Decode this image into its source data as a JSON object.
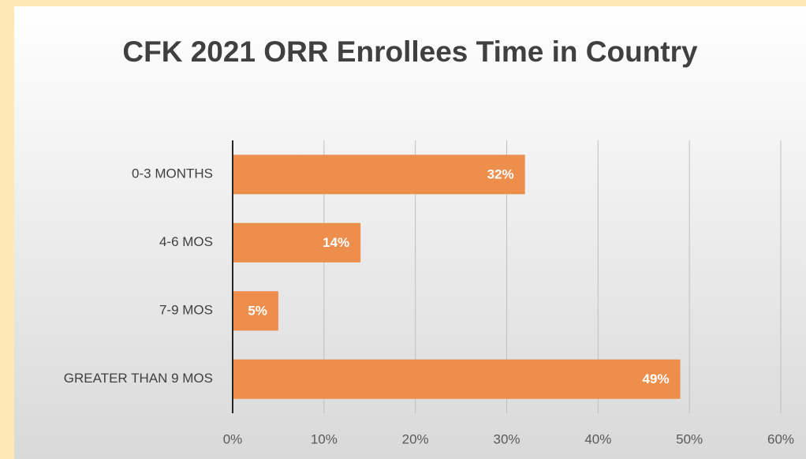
{
  "chart_data": {
    "type": "bar",
    "orientation": "horizontal",
    "title": "CFK 2021 ORR Enrollees Time in Country",
    "categories": [
      "0-3 MONTHS",
      "4-6 MOS",
      "7-9 MOS",
      "GREATER THAN 9 MOS"
    ],
    "values": [
      32,
      14,
      5,
      49
    ],
    "value_labels": [
      "32%",
      "14%",
      "5%",
      "49%"
    ],
    "color": "#ee8e4c",
    "xlim": [
      0,
      60
    ],
    "xticks": [
      {
        "value": 0,
        "label": "0%"
      },
      {
        "value": 10,
        "label": "10%"
      },
      {
        "value": 20,
        "label": "20%"
      },
      {
        "value": 30,
        "label": "30%"
      },
      {
        "value": 40,
        "label": "40%"
      },
      {
        "value": 50,
        "label": "50%"
      },
      {
        "value": 60,
        "label": "60%"
      }
    ],
    "grid": true
  }
}
